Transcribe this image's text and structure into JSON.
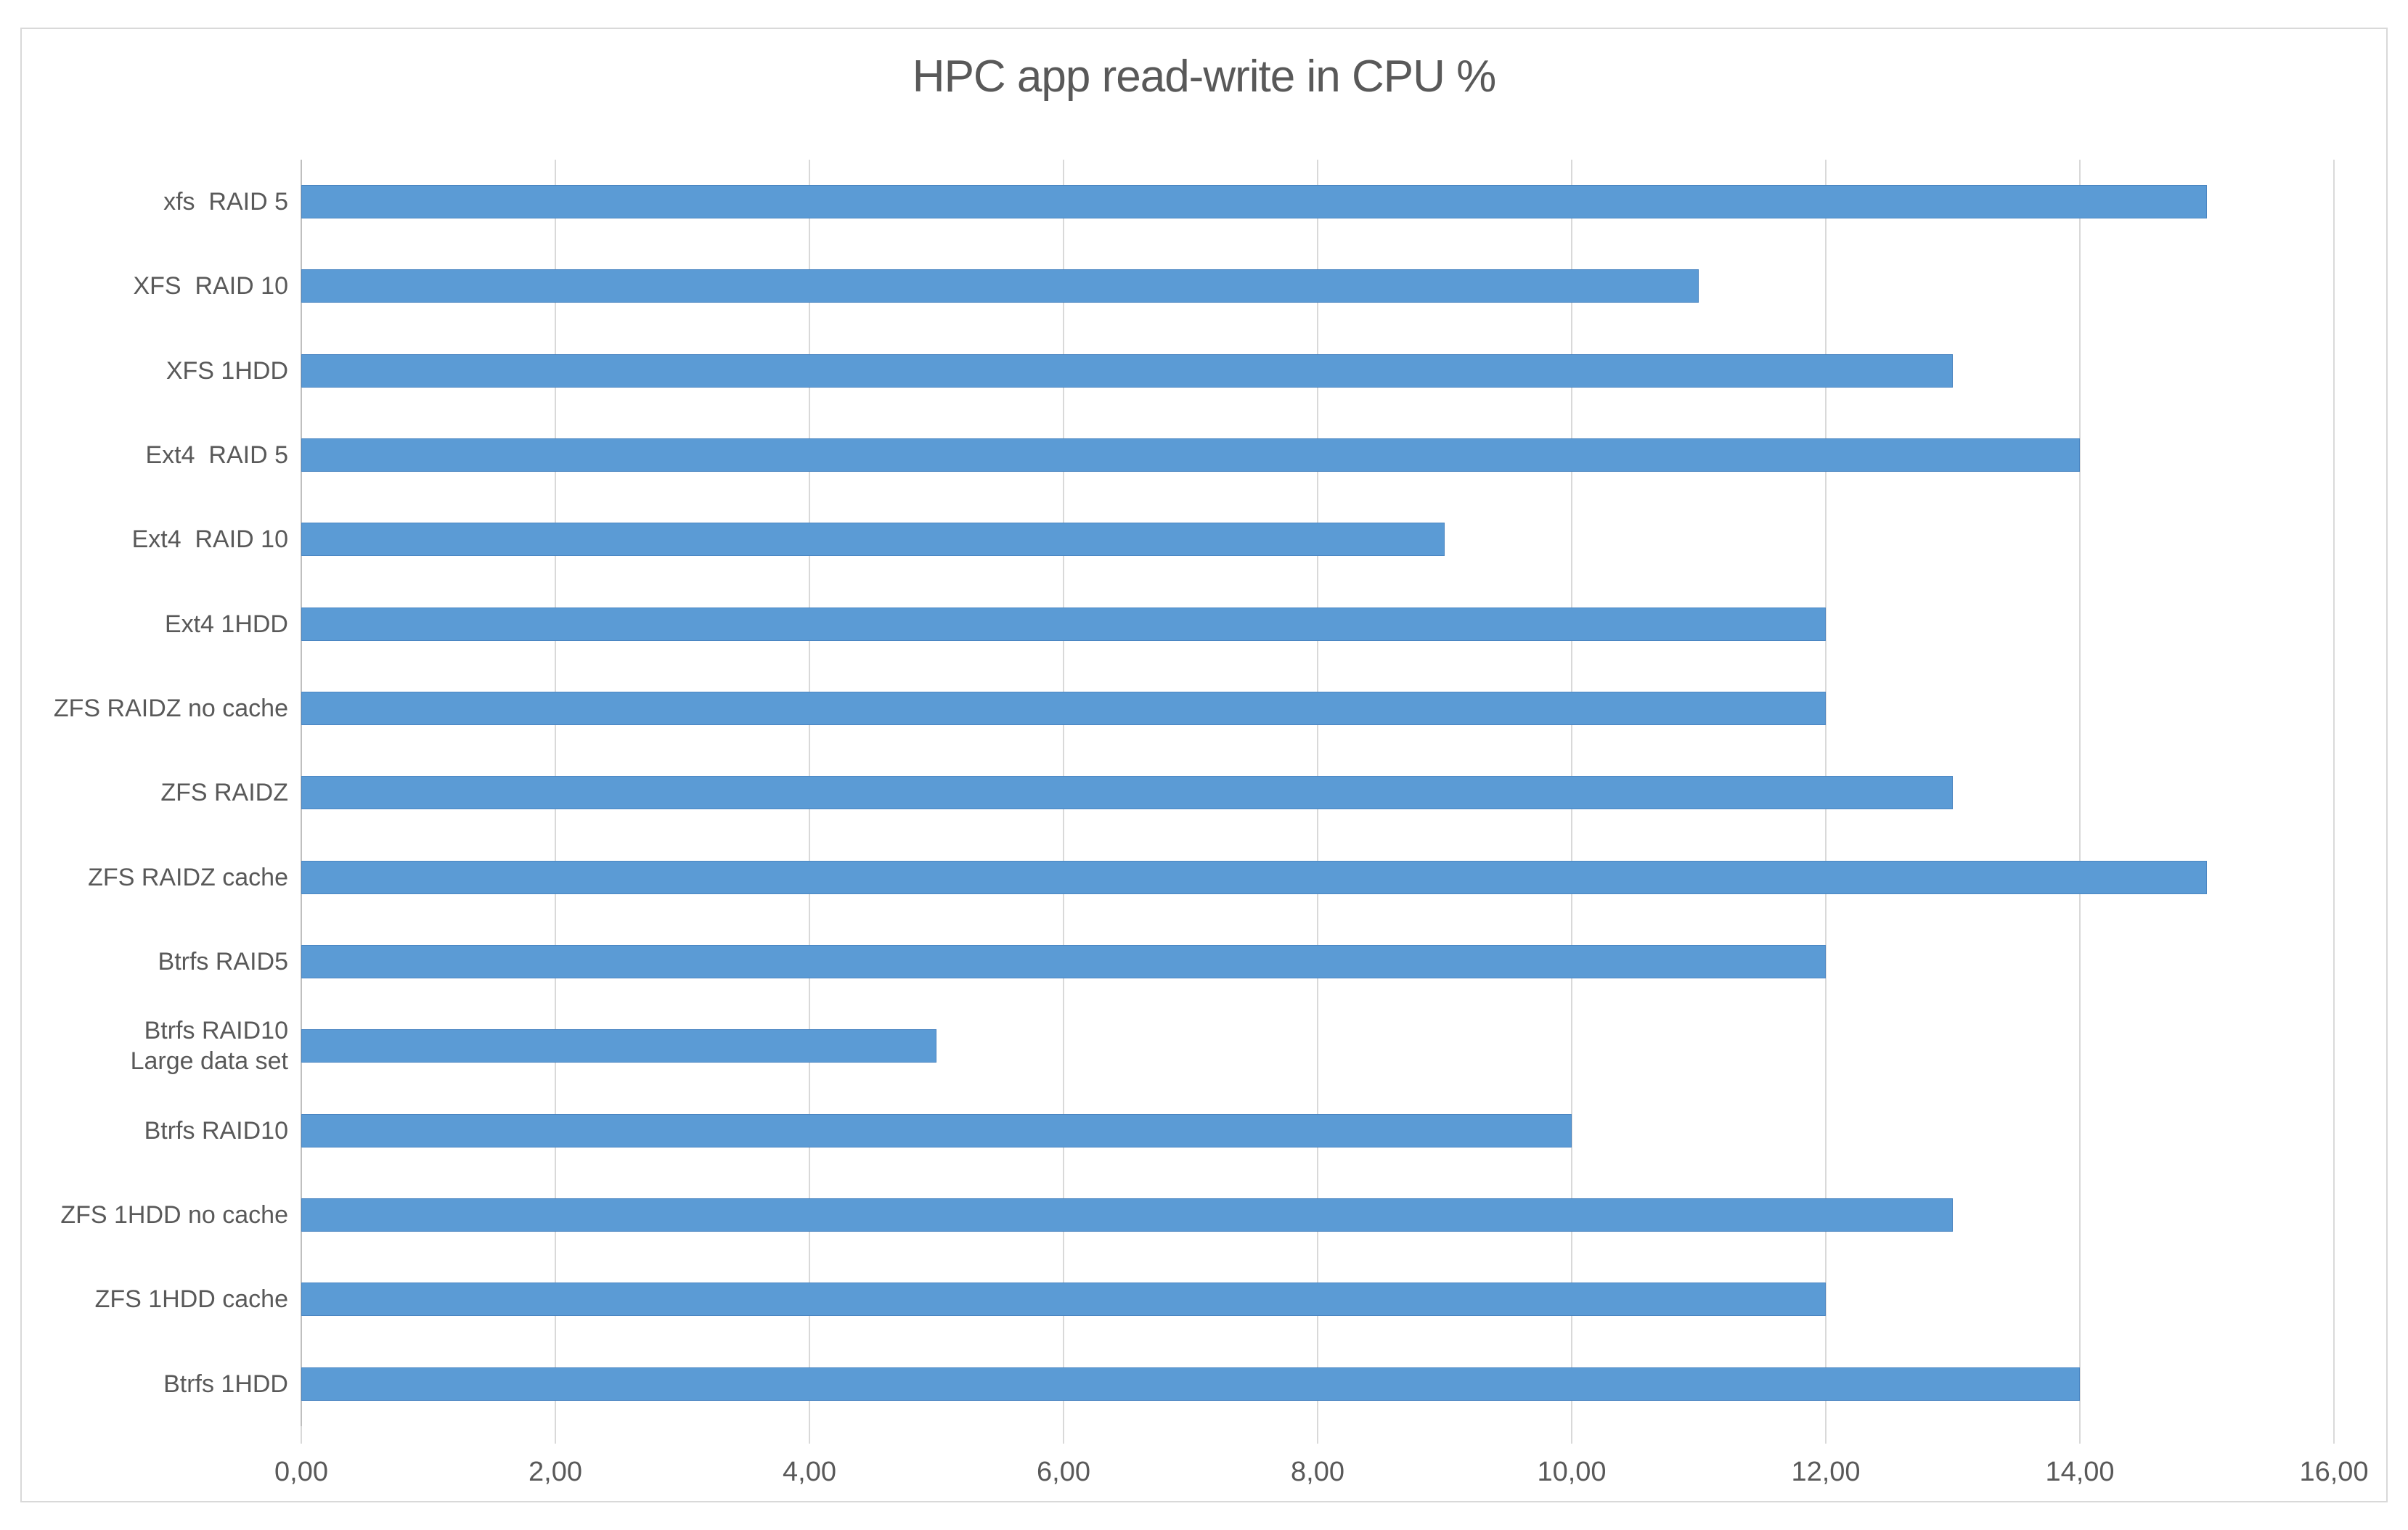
{
  "chart_data": {
    "type": "bar",
    "orientation": "horizontal",
    "title": "HPC app read-write in CPU %",
    "categories": [
      "xfs  RAID 5",
      "XFS  RAID 10",
      "XFS 1HDD",
      "Ext4  RAID 5",
      "Ext4  RAID 10",
      "Ext4 1HDD",
      "ZFS RAIDZ no cache",
      "ZFS RAIDZ",
      "ZFS RAIDZ cache",
      "Btrfs RAID5",
      "Btrfs RAID10\nLarge data set",
      "Btrfs RAID10",
      "ZFS 1HDD no cache",
      "ZFS 1HDD cache",
      "Btrfs 1HDD"
    ],
    "values": [
      15,
      11,
      13,
      14,
      9,
      12,
      12,
      13,
      15,
      12,
      5,
      10,
      13,
      12,
      14
    ],
    "xlabel": "",
    "ylabel": "",
    "xlim": [
      0,
      16
    ],
    "x_tick_step": 2,
    "x_tick_labels": [
      "0,00",
      "2,00",
      "4,00",
      "6,00",
      "8,00",
      "10,00",
      "12,00",
      "14,00",
      "16,00"
    ],
    "grid": true,
    "legend": false,
    "colors": {
      "bar_fill": "#5B9BD5",
      "bar_border": "#4B86C2",
      "text": "#595959",
      "gridline": "#D9D9D9",
      "axis_line": "#BFBFBF",
      "frame_border": "#D9D9D9"
    }
  }
}
